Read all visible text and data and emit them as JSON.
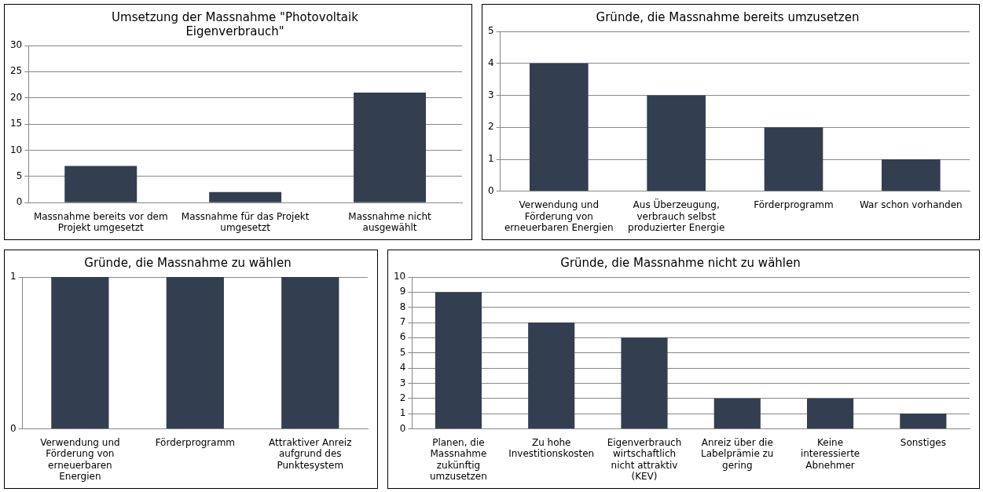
{
  "chart_data": [
    {
      "type": "bar",
      "title": "Umsetzung der Massnahme \"Photovoltaik Eigenverbrauch\"",
      "categories": [
        "Massnahme bereits vor dem Projekt umgesetzt",
        "Massnahme für das Projekt umgesetzt",
        "Massnahme nicht ausgewählt"
      ],
      "values": [
        7,
        2,
        21
      ],
      "color": "#333f50",
      "ylim": [
        0,
        30
      ],
      "yticks": [
        0,
        5,
        10,
        15,
        20,
        25,
        30
      ],
      "grid": "y",
      "legend": false
    },
    {
      "type": "bar",
      "title": "Gründe, die Massnahme bereits umzusetzen",
      "categories": [
        "Verwendung und Förderung von erneuerbaren Energien",
        "Aus Überzeugung, verbrauch selbst produzierter Energie",
        "Förderprogramm",
        "War schon vorhanden"
      ],
      "values": [
        4,
        3,
        2,
        1
      ],
      "color": "#333f50",
      "ylim": [
        0,
        5
      ],
      "yticks": [
        0,
        1,
        2,
        3,
        4,
        5
      ],
      "grid": "y",
      "legend": false
    },
    {
      "type": "bar",
      "title": "Gründe, die Massnahme zu wählen",
      "categories": [
        "Verwendung und Förderung von erneuerbaren Energien",
        "Förderprogramm",
        "Attraktiver Anreiz aufgrund des Punktesystem"
      ],
      "values": [
        1,
        1,
        1
      ],
      "color": "#333f50",
      "ylim": [
        0,
        1
      ],
      "yticks": [
        0,
        1
      ],
      "grid": "y",
      "legend": false
    },
    {
      "type": "bar",
      "title": "Gründe, die Massnahme nicht zu wählen",
      "categories": [
        "Planen, die Massnahme zukünftig umzusetzen",
        "Zu hohe Investitionskosten",
        "Eigenverbrauch wirtschaftlich nicht attraktiv (KEV)",
        "Anreiz über die Labelprämie zu gering",
        "Keine interessierte Abnehmer",
        "Sonstiges"
      ],
      "values": [
        9,
        7,
        6,
        2,
        2,
        1
      ],
      "color": "#333f50",
      "ylim": [
        0,
        10
      ],
      "yticks": [
        0,
        1,
        2,
        3,
        4,
        5,
        6,
        7,
        8,
        9,
        10
      ],
      "grid": "y",
      "legend": false
    }
  ]
}
